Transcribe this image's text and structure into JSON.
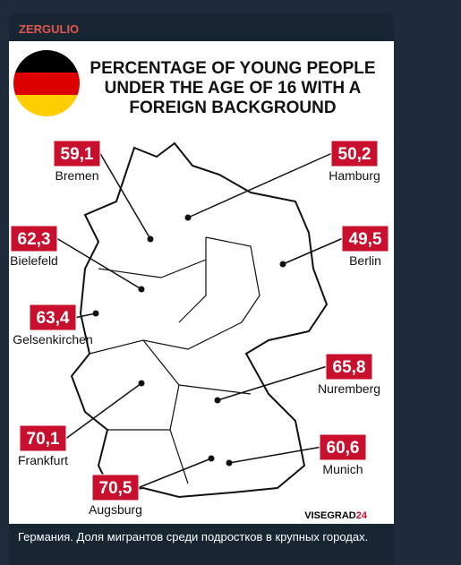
{
  "channel": {
    "name": "ZERGULIO"
  },
  "infographic": {
    "title": [
      "PERCENTAGE OF YOUNG PEOPLE",
      "UNDER THE AGE OF 16 WITH A",
      "FOREIGN BACKGROUND"
    ],
    "cities": [
      {
        "name": "Bremen",
        "value": "59,1"
      },
      {
        "name": "Hamburg",
        "value": "50,2"
      },
      {
        "name": "Bielefeld",
        "value": "62,3"
      },
      {
        "name": "Berlin",
        "value": "49,5"
      },
      {
        "name": "Gelsenkirchen",
        "value": "63,4"
      },
      {
        "name": "Nuremberg",
        "value": "65,8"
      },
      {
        "name": "Frankfurt",
        "value": "70,1"
      },
      {
        "name": "Munich",
        "value": "60,6"
      },
      {
        "name": "Augsburg",
        "value": "70,5"
      }
    ],
    "source": {
      "name": "VISEGRAD",
      "suffix": "24"
    }
  },
  "caption": "Германия. Доля мигрантов среди подростков в крупных городах."
}
